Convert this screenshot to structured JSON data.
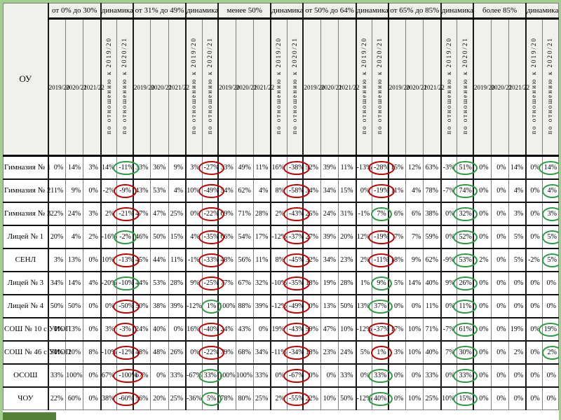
{
  "title_column": "ОУ",
  "years": [
    "2019/20",
    "2020/21",
    "2021/22"
  ],
  "dynamics_label": "динамика",
  "dynamics_columns": [
    "по отношению к 2019/20",
    "по отношению к 2020/21"
  ],
  "groups": [
    "от 0% до 30%",
    "от 31% до 49%",
    "менее 50%",
    "от 50% до 64%",
    "от 65% до 85%",
    "более 85%"
  ],
  "colors": {
    "circle_red": "#c00000",
    "circle_green": "#2e9b44",
    "frame_light": "#a3cf8e",
    "frame_dark": "#538135"
  },
  "rows": [
    {
      "name": "Гимназия № 1",
      "cells": [
        "0%",
        "14%",
        "3%",
        "14%",
        {
          "t": "-11%",
          "c": "g"
        },
        "33%",
        "36%",
        "9%",
        "3%",
        {
          "t": "-27%",
          "c": "r"
        },
        "33%",
        "49%",
        "11%",
        "16%",
        {
          "t": "-38%",
          "c": "r"
        },
        "52%",
        "39%",
        "11%",
        "-13%",
        {
          "t": "-28%",
          "c": "r"
        },
        "15%",
        "12%",
        "63%",
        "-3%",
        {
          "t": "51%",
          "c": "g"
        },
        "0%",
        "0%",
        "14%",
        "0%",
        {
          "t": "14%",
          "c": "g"
        }
      ]
    },
    {
      "name": "Гимназия № 2",
      "cells": [
        "11%",
        "9%",
        "0%",
        "-2%",
        {
          "t": "-9%",
          "c": "r"
        },
        "43%",
        "53%",
        "4%",
        "10%",
        {
          "t": "-49%",
          "c": "r"
        },
        "54%",
        "62%",
        "4%",
        "8%",
        {
          "t": "-58%",
          "c": "r"
        },
        "34%",
        "34%",
        "15%",
        "0%",
        {
          "t": "-19%",
          "c": "r"
        },
        "11%",
        "4%",
        "78%",
        "-7%",
        {
          "t": "74%",
          "c": "g"
        },
        "0%",
        "0%",
        "4%",
        "0%",
        {
          "t": "4%",
          "c": "g"
        }
      ]
    },
    {
      "name": "Гимназия № 3",
      "cells": [
        "22%",
        "24%",
        "3%",
        "2%",
        {
          "t": "-21%",
          "c": "r"
        },
        "47%",
        "47%",
        "25%",
        "0%",
        {
          "t": "-22%",
          "c": "r"
        },
        "69%",
        "71%",
        "28%",
        "2%",
        {
          "t": "-43%",
          "c": "r"
        },
        "25%",
        "24%",
        "31%",
        "-1%",
        {
          "t": "7%",
          "c": "g"
        },
        "6%",
        "6%",
        "38%",
        "0%",
        {
          "t": "32%",
          "c": "g"
        },
        "0%",
        "0%",
        "3%",
        "0%",
        {
          "t": "3%",
          "c": "g"
        }
      ]
    },
    {
      "name": "Лицей № 1",
      "cells": [
        "20%",
        "4%",
        "2%",
        "-16%",
        {
          "t": "-2%",
          "c": "g"
        },
        "46%",
        "50%",
        "15%",
        "4%",
        {
          "t": "-35%",
          "c": "r"
        },
        "66%",
        "54%",
        "17%",
        "-12%",
        {
          "t": "-37%",
          "c": "r"
        },
        "27%",
        "39%",
        "20%",
        "12%",
        {
          "t": "-19%",
          "c": "r"
        },
        "7%",
        "7%",
        "59%",
        "0%",
        {
          "t": "52%",
          "c": "g"
        },
        "0%",
        "0%",
        "5%",
        "0%",
        {
          "t": "5%",
          "c": "g"
        }
      ]
    },
    {
      "name": "СЕНЛ",
      "cells": [
        "3%",
        "13%",
        "0%",
        "10%",
        {
          "t": "-13%",
          "c": "r"
        },
        "45%",
        "44%",
        "11%",
        "-1%",
        {
          "t": "-33%",
          "c": "r"
        },
        "48%",
        "56%",
        "11%",
        "8%",
        {
          "t": "-45%",
          "c": "r"
        },
        "32%",
        "34%",
        "23%",
        "2%",
        {
          "t": "-11%",
          "c": "r"
        },
        "18%",
        "9%",
        "62%",
        "-9%",
        {
          "t": "53%",
          "c": "g"
        },
        "2%",
        "0%",
        "5%",
        "-2%",
        {
          "t": "5%",
          "c": "g"
        }
      ]
    },
    {
      "name": "Лицей № 3",
      "cells": [
        "34%",
        "14%",
        "4%",
        "-20%",
        {
          "t": "-10%",
          "c": "g"
        },
        "44%",
        "53%",
        "28%",
        "9%",
        {
          "t": "-25%",
          "c": "r"
        },
        "77%",
        "67%",
        "32%",
        "-10%",
        {
          "t": "-35%",
          "c": "r"
        },
        "18%",
        "19%",
        "28%",
        "1%",
        {
          "t": "9%",
          "c": "g"
        },
        "5%",
        "14%",
        "40%",
        "9%",
        {
          "t": "26%",
          "c": "g"
        },
        "0%",
        "0%",
        "0%",
        "0%",
        "0%"
      ]
    },
    {
      "name": "Лицей № 4",
      "cells": [
        "50%",
        "50%",
        "0%",
        "0%",
        {
          "t": "-50%",
          "c": "r"
        },
        "50%",
        "38%",
        "39%",
        "-12%",
        {
          "t": "1%",
          "c": "g"
        },
        "100%",
        "88%",
        "39%",
        "-12%",
        {
          "t": "-49%",
          "c": "r"
        },
        "0%",
        "13%",
        "50%",
        "13%",
        {
          "t": "37%",
          "c": "g"
        },
        "0%",
        "0%",
        "11%",
        "0%",
        {
          "t": "11%",
          "c": "g"
        },
        "0%",
        "0%",
        "0%",
        "0%",
        "0%"
      ]
    },
    {
      "name": "СОШ № 10 с УИОП",
      "cells": [
        "0%",
        "3%",
        "0%",
        "3%",
        {
          "t": "-3%",
          "c": "r"
        },
        "24%",
        "40%",
        "0%",
        "16%",
        {
          "t": "-40%",
          "c": "r"
        },
        "24%",
        "43%",
        "0%",
        "19%",
        {
          "t": "-43%",
          "c": "r"
        },
        "59%",
        "47%",
        "10%",
        "-12%",
        {
          "t": "-37%",
          "c": "r"
        },
        "17%",
        "10%",
        "71%",
        "-7%",
        {
          "t": "61%",
          "c": "g"
        },
        "0%",
        "0%",
        "19%",
        "0%",
        {
          "t": "19%",
          "c": "g"
        }
      ]
    },
    {
      "name": "СОШ № 46 с УИОП",
      "cells": [
        "30%",
        "20%",
        "8%",
        "-10%",
        {
          "t": "-12%",
          "c": "r"
        },
        "48%",
        "48%",
        "26%",
        "0%",
        {
          "t": "-22%",
          "c": "r"
        },
        "79%",
        "68%",
        "34%",
        "-11%",
        {
          "t": "-34%",
          "c": "r"
        },
        "18%",
        "23%",
        "24%",
        "5%",
        {
          "t": "1%",
          "c": "r"
        },
        "3%",
        "10%",
        "40%",
        "7%",
        {
          "t": "30%",
          "c": "g"
        },
        "0%",
        "0%",
        "2%",
        "0%",
        {
          "t": "2%",
          "c": "g"
        }
      ]
    },
    {
      "name": "ОСОШ",
      "cells": [
        "33%",
        "100%",
        "0%",
        "67%",
        {
          "t": "-100%",
          "c": "r"
        },
        "67%",
        "0%",
        "33%",
        "-67%",
        {
          "t": "33%",
          "c": "g"
        },
        "100%",
        "100%",
        "33%",
        "0%",
        {
          "t": "-67%",
          "c": "r"
        },
        "0%",
        "0%",
        "33%",
        "0%",
        {
          "t": "33%",
          "c": "g"
        },
        "0%",
        "0%",
        "33%",
        "0%",
        {
          "t": "33%",
          "c": "g"
        },
        "0%",
        "0%",
        "0%",
        "0%",
        "0%"
      ]
    },
    {
      "name": "ЧОУ",
      "cells": [
        "22%",
        "60%",
        "0%",
        "38%",
        {
          "t": "-60%",
          "c": "r"
        },
        "56%",
        "20%",
        "25%",
        "-36%",
        {
          "t": "5%",
          "c": "g"
        },
        "78%",
        "80%",
        "25%",
        "2%",
        {
          "t": "-55%",
          "c": "r"
        },
        "22%",
        "10%",
        "50%",
        "-12%",
        {
          "t": "40%",
          "c": "g"
        },
        "0%",
        "10%",
        "25%",
        "10%",
        {
          "t": "15%",
          "c": "g"
        },
        "0%",
        "0%",
        "0%",
        "0%",
        "0%"
      ]
    }
  ]
}
